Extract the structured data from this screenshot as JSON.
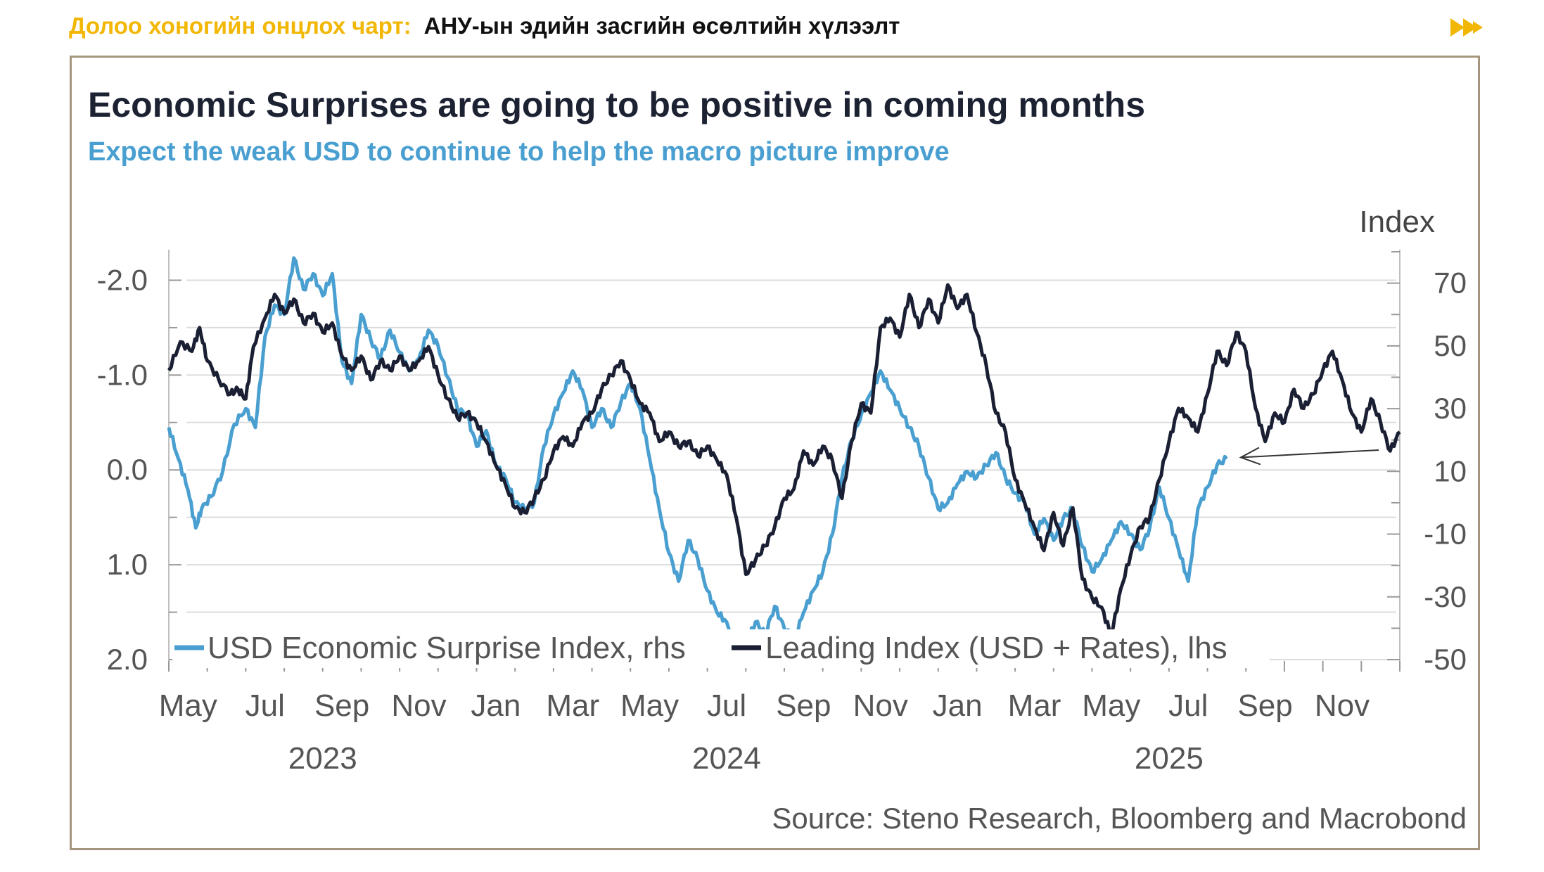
{
  "header": {
    "label": "Долоо хоногийн онцлох чарт:",
    "title": "АНУ-ын эдийн засгийн өсөлтийн хүлээлт",
    "arrow_icon": "double-chevron-right-icon",
    "accent_color": "#f2b705"
  },
  "chart_data": {
    "type": "line",
    "title": "Economic Surprises are going to be positive in coming months",
    "subtitle": "Expect the weak USD to continue to help the macro picture improve",
    "right_axis_label": "Index",
    "source": "Source: Steno Research, Bloomberg and Macrobond",
    "left_axis": {
      "inverted": true,
      "range": [
        -2.3,
        2.0
      ],
      "ticks": [
        -2.0,
        -1.0,
        0.0,
        1.0,
        2.0
      ],
      "tick_labels": [
        "-2.0",
        "-1.0",
        "0.0",
        "1.0",
        "2.0"
      ]
    },
    "right_axis": {
      "range": [
        -50,
        80
      ],
      "ticks": [
        70,
        50,
        30,
        10,
        -10,
        -30,
        -50
      ],
      "tick_labels": [
        "70",
        "50",
        "30",
        "10",
        "-10",
        "-30",
        "-50"
      ]
    },
    "x_axis": {
      "start_month_index": 4,
      "end_month_index": 34,
      "month_labels": [
        {
          "label": "May",
          "m": 4.5
        },
        {
          "label": "Jul",
          "m": 6.5
        },
        {
          "label": "Sep",
          "m": 8.5
        },
        {
          "label": "Nov",
          "m": 10.5
        },
        {
          "label": "Jan",
          "m": 12.5
        },
        {
          "label": "Mar",
          "m": 14.5
        },
        {
          "label": "May",
          "m": 16.5
        },
        {
          "label": "Jul",
          "m": 18.5
        },
        {
          "label": "Sep",
          "m": 20.5
        },
        {
          "label": "Nov",
          "m": 22.5
        },
        {
          "label": "Jan",
          "m": 24.5
        },
        {
          "label": "Mar",
          "m": 26.5
        },
        {
          "label": "May",
          "m": 28.5
        },
        {
          "label": "Jul",
          "m": 30.5
        },
        {
          "label": "Sep",
          "m": 32.5
        },
        {
          "label": "Nov",
          "m": 34.5
        }
      ],
      "year_labels": [
        {
          "label": "2023",
          "m": 8.0
        },
        {
          "label": "2024",
          "m": 18.5
        },
        {
          "label": "2025",
          "m": 30.0
        }
      ]
    },
    "series": [
      {
        "name": "USD Economic Surprise Index, rhs",
        "axis": "right",
        "color": "#4a9fd1",
        "points": [
          [
            4.0,
            24
          ],
          [
            4.25,
            14
          ],
          [
            4.5,
            4
          ],
          [
            4.7,
            -8
          ],
          [
            4.85,
            -2
          ],
          [
            5.1,
            2
          ],
          [
            5.4,
            10
          ],
          [
            5.7,
            25
          ],
          [
            6.0,
            30
          ],
          [
            6.25,
            24
          ],
          [
            6.5,
            53
          ],
          [
            6.75,
            63
          ],
          [
            7.0,
            60
          ],
          [
            7.25,
            78
          ],
          [
            7.5,
            68
          ],
          [
            7.75,
            73
          ],
          [
            8.0,
            66
          ],
          [
            8.25,
            73
          ],
          [
            8.5,
            45
          ],
          [
            8.75,
            38
          ],
          [
            9.0,
            60
          ],
          [
            9.25,
            52
          ],
          [
            9.5,
            46
          ],
          [
            9.75,
            55
          ],
          [
            10.0,
            48
          ],
          [
            10.25,
            42
          ],
          [
            10.5,
            46
          ],
          [
            10.75,
            55
          ],
          [
            11.0,
            50
          ],
          [
            11.25,
            40
          ],
          [
            11.5,
            30
          ],
          [
            11.75,
            28
          ],
          [
            12.0,
            18
          ],
          [
            12.25,
            23
          ],
          [
            12.5,
            12
          ],
          [
            12.75,
            8
          ],
          [
            13.0,
            0
          ],
          [
            13.25,
            -2
          ],
          [
            13.5,
            0
          ],
          [
            13.75,
            18
          ],
          [
            14.0,
            28
          ],
          [
            14.25,
            35
          ],
          [
            14.5,
            42
          ],
          [
            14.75,
            36
          ],
          [
            15.0,
            24
          ],
          [
            15.25,
            30
          ],
          [
            15.5,
            24
          ],
          [
            15.75,
            32
          ],
          [
            16.0,
            38
          ],
          [
            16.25,
            30
          ],
          [
            16.5,
            14
          ],
          [
            16.75,
            -2
          ],
          [
            17.0,
            -16
          ],
          [
            17.25,
            -25
          ],
          [
            17.5,
            -12
          ],
          [
            17.75,
            -18
          ],
          [
            18.0,
            -28
          ],
          [
            18.25,
            -35
          ],
          [
            18.5,
            -38
          ],
          [
            18.75,
            -48
          ],
          [
            19.0,
            -45
          ],
          [
            19.25,
            -38
          ],
          [
            19.5,
            -42
          ],
          [
            19.75,
            -33
          ],
          [
            20.0,
            -40
          ],
          [
            20.25,
            -44
          ],
          [
            20.5,
            -35
          ],
          [
            20.75,
            -28
          ],
          [
            21.0,
            -22
          ],
          [
            21.25,
            -10
          ],
          [
            21.5,
            8
          ],
          [
            21.75,
            20
          ],
          [
            22.0,
            28
          ],
          [
            22.25,
            35
          ],
          [
            22.5,
            42
          ],
          [
            22.75,
            36
          ],
          [
            23.0,
            30
          ],
          [
            23.25,
            24
          ],
          [
            23.5,
            18
          ],
          [
            23.75,
            8
          ],
          [
            24.0,
            -2
          ],
          [
            24.25,
            0
          ],
          [
            24.5,
            6
          ],
          [
            24.75,
            10
          ],
          [
            25.0,
            8
          ],
          [
            25.25,
            12
          ],
          [
            25.5,
            16
          ],
          [
            25.75,
            8
          ],
          [
            26.0,
            3
          ],
          [
            26.25,
            0
          ],
          [
            26.5,
            -10
          ],
          [
            26.75,
            -5
          ],
          [
            27.0,
            -12
          ],
          [
            27.25,
            -5
          ],
          [
            27.5,
            -2
          ],
          [
            27.75,
            -14
          ],
          [
            28.0,
            -22
          ],
          [
            28.25,
            -18
          ],
          [
            28.5,
            -12
          ],
          [
            28.75,
            -6
          ],
          [
            29.0,
            -10
          ],
          [
            29.25,
            -15
          ],
          [
            29.5,
            -8
          ],
          [
            29.75,
            5
          ],
          [
            30.0,
            -5
          ],
          [
            30.25,
            -15
          ],
          [
            30.5,
            -25
          ],
          [
            30.75,
            -2
          ],
          [
            31.0,
            5
          ],
          [
            31.25,
            12
          ],
          [
            31.5,
            14
          ]
        ]
      },
      {
        "name": "Leading Index (USD + Rates), lhs",
        "axis": "left",
        "color": "#1a1f33",
        "points": [
          [
            4.0,
            -1.05
          ],
          [
            4.3,
            -1.35
          ],
          [
            4.6,
            -1.25
          ],
          [
            4.8,
            -1.5
          ],
          [
            5.0,
            -1.15
          ],
          [
            5.3,
            -0.95
          ],
          [
            5.6,
            -0.8
          ],
          [
            5.8,
            -0.85
          ],
          [
            6.0,
            -0.75
          ],
          [
            6.2,
            -1.3
          ],
          [
            6.5,
            -1.6
          ],
          [
            6.75,
            -1.85
          ],
          [
            7.0,
            -1.65
          ],
          [
            7.25,
            -1.8
          ],
          [
            7.5,
            -1.55
          ],
          [
            7.75,
            -1.65
          ],
          [
            8.0,
            -1.45
          ],
          [
            8.25,
            -1.55
          ],
          [
            8.5,
            -1.2
          ],
          [
            8.75,
            -1.05
          ],
          [
            9.0,
            -1.2
          ],
          [
            9.25,
            -0.95
          ],
          [
            9.5,
            -1.15
          ],
          [
            9.75,
            -1.05
          ],
          [
            10.0,
            -1.2
          ],
          [
            10.25,
            -1.05
          ],
          [
            10.5,
            -1.15
          ],
          [
            10.75,
            -1.3
          ],
          [
            11.0,
            -1.0
          ],
          [
            11.25,
            -0.75
          ],
          [
            11.5,
            -0.55
          ],
          [
            11.75,
            -0.6
          ],
          [
            12.0,
            -0.5
          ],
          [
            12.25,
            -0.3
          ],
          [
            12.5,
            -0.05
          ],
          [
            12.75,
            0.15
          ],
          [
            13.0,
            0.4
          ],
          [
            13.25,
            0.45
          ],
          [
            13.5,
            0.3
          ],
          [
            13.75,
            0.1
          ],
          [
            14.0,
            -0.2
          ],
          [
            14.25,
            -0.35
          ],
          [
            14.5,
            -0.25
          ],
          [
            14.75,
            -0.5
          ],
          [
            15.0,
            -0.6
          ],
          [
            15.25,
            -0.85
          ],
          [
            15.5,
            -1.0
          ],
          [
            15.75,
            -1.15
          ],
          [
            16.0,
            -0.95
          ],
          [
            16.25,
            -0.7
          ],
          [
            16.5,
            -0.6
          ],
          [
            16.75,
            -0.3
          ],
          [
            17.0,
            -0.4
          ],
          [
            17.25,
            -0.25
          ],
          [
            17.5,
            -0.3
          ],
          [
            17.75,
            -0.15
          ],
          [
            18.0,
            -0.25
          ],
          [
            18.25,
            -0.1
          ],
          [
            18.5,
            0.05
          ],
          [
            18.75,
            0.5
          ],
          [
            19.0,
            1.1
          ],
          [
            19.25,
            0.95
          ],
          [
            19.5,
            0.8
          ],
          [
            19.75,
            0.6
          ],
          [
            20.0,
            0.3
          ],
          [
            20.25,
            0.2
          ],
          [
            20.5,
            -0.2
          ],
          [
            20.75,
            -0.05
          ],
          [
            21.0,
            -0.25
          ],
          [
            21.25,
            -0.1
          ],
          [
            21.5,
            0.3
          ],
          [
            21.75,
            -0.3
          ],
          [
            22.0,
            -0.7
          ],
          [
            22.25,
            -0.6
          ],
          [
            22.5,
            -1.5
          ],
          [
            22.75,
            -1.6
          ],
          [
            23.0,
            -1.4
          ],
          [
            23.25,
            -1.85
          ],
          [
            23.5,
            -1.5
          ],
          [
            23.75,
            -1.8
          ],
          [
            24.0,
            -1.55
          ],
          [
            24.25,
            -1.95
          ],
          [
            24.5,
            -1.7
          ],
          [
            24.75,
            -1.85
          ],
          [
            25.0,
            -1.45
          ],
          [
            25.25,
            -1.1
          ],
          [
            25.5,
            -0.6
          ],
          [
            25.75,
            -0.4
          ],
          [
            26.0,
            0.1
          ],
          [
            26.25,
            0.35
          ],
          [
            26.5,
            0.6
          ],
          [
            26.75,
            0.85
          ],
          [
            27.0,
            0.45
          ],
          [
            27.25,
            0.8
          ],
          [
            27.5,
            0.4
          ],
          [
            27.75,
            1.15
          ],
          [
            28.0,
            1.35
          ],
          [
            28.25,
            1.45
          ],
          [
            28.5,
            1.75
          ],
          [
            28.75,
            1.25
          ],
          [
            29.0,
            0.9
          ],
          [
            29.25,
            0.6
          ],
          [
            29.5,
            0.5
          ],
          [
            29.75,
            0.1
          ],
          [
            30.0,
            -0.3
          ],
          [
            30.25,
            -0.65
          ],
          [
            30.5,
            -0.55
          ],
          [
            30.75,
            -0.4
          ],
          [
            31.0,
            -0.8
          ],
          [
            31.25,
            -1.25
          ],
          [
            31.5,
            -1.1
          ],
          [
            31.75,
            -1.45
          ],
          [
            32.0,
            -1.25
          ],
          [
            32.25,
            -0.65
          ],
          [
            32.5,
            -0.3
          ],
          [
            32.75,
            -0.6
          ],
          [
            33.0,
            -0.5
          ],
          [
            33.25,
            -0.85
          ],
          [
            33.5,
            -0.65
          ],
          [
            33.75,
            -0.8
          ],
          [
            34.0,
            -1.05
          ],
          [
            34.25,
            -1.25
          ],
          [
            34.5,
            -0.95
          ],
          [
            34.75,
            -0.6
          ],
          [
            35.0,
            -0.4
          ],
          [
            35.25,
            -0.75
          ],
          [
            35.5,
            -0.5
          ],
          [
            35.75,
            -0.2
          ],
          [
            36.0,
            -0.4
          ]
        ]
      }
    ],
    "legend": [
      {
        "label": "USD Economic Surprise Index, rhs",
        "color": "#4a9fd1"
      },
      {
        "label": "Leading Index (USD + Rates), lhs",
        "color": "#1a1f33"
      }
    ],
    "legend_position": "bottom-left",
    "annotation": "arrow pointing to the end of the USD Economic Surprise Index line"
  }
}
